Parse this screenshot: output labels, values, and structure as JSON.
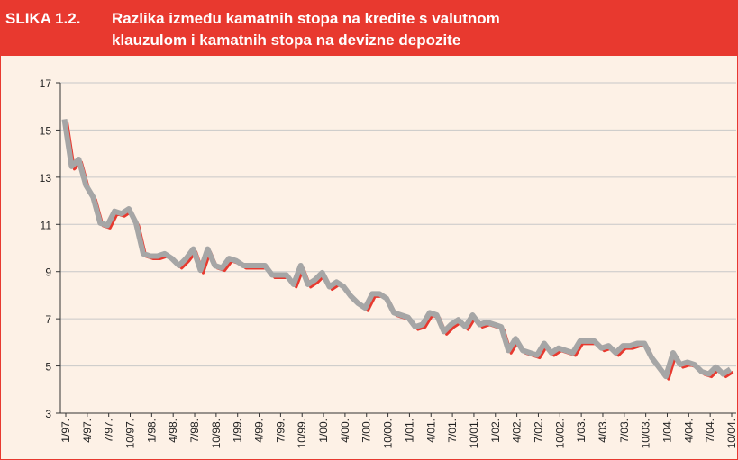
{
  "chart_data": {
    "type": "line",
    "figure_label": "SLIKA 1.2.",
    "title": [
      "Razlika između kamatnih stopa na kredite s valutnom",
      "klauzulom i kamatnih stopa na devizne depozite"
    ],
    "categories": [
      "1/97.",
      null,
      null,
      "4/97.",
      null,
      null,
      "7/97.",
      null,
      null,
      "10/97.",
      null,
      null,
      "1/98.",
      null,
      null,
      "4/98.",
      null,
      null,
      "7/98.",
      null,
      null,
      "10/98.",
      null,
      null,
      "1/99.",
      null,
      null,
      "4/99.",
      null,
      null,
      "7/99.",
      null,
      null,
      "10/99.",
      null,
      null,
      "1/00.",
      null,
      null,
      "4/00.",
      null,
      null,
      "7/00.",
      null,
      null,
      "10/00.",
      null,
      null,
      "1/01.",
      null,
      null,
      "4/01.",
      null,
      null,
      "7/01.",
      null,
      null,
      "10/01.",
      null,
      null,
      "1/02.",
      null,
      null,
      "4/02.",
      null,
      null,
      "7/02.",
      null,
      null,
      "10/02.",
      null,
      null,
      "1/03.",
      null,
      null,
      "4/03.",
      null,
      null,
      "7/03.",
      null,
      null,
      "10/03.",
      null,
      null,
      "1/04.",
      null,
      null,
      "4/04.",
      null,
      null,
      "7/04.",
      null,
      null,
      "10/04."
    ],
    "series": [
      {
        "color": "#e8392f",
        "shadow_color": "#a6a6a6",
        "values": [
          15.4,
          13.4,
          13.7,
          12.6,
          12.1,
          11.0,
          10.9,
          11.5,
          11.4,
          11.6,
          11.0,
          9.7,
          9.6,
          9.6,
          9.7,
          9.5,
          9.2,
          9.5,
          9.9,
          9.0,
          9.9,
          9.2,
          9.1,
          9.5,
          9.4,
          9.2,
          9.2,
          9.2,
          9.2,
          8.8,
          8.8,
          8.8,
          8.4,
          9.2,
          8.4,
          8.6,
          8.9,
          8.3,
          8.5,
          8.3,
          7.9,
          7.6,
          7.4,
          8.0,
          8.0,
          7.8,
          7.2,
          7.1,
          7.0,
          6.6,
          6.7,
          7.2,
          7.1,
          6.4,
          6.7,
          6.9,
          6.6,
          7.1,
          6.7,
          6.8,
          6.7,
          6.6,
          5.6,
          6.1,
          5.6,
          5.5,
          5.4,
          5.9,
          5.5,
          5.7,
          5.6,
          5.5,
          6.0,
          6.0,
          6.0,
          5.7,
          5.8,
          5.5,
          5.8,
          5.8,
          5.9,
          5.9,
          5.3,
          4.9,
          4.5,
          5.5,
          5.0,
          5.1,
          5.0,
          4.7,
          4.6,
          4.9,
          4.6,
          4.8
        ]
      }
    ],
    "ylim": [
      3,
      17
    ],
    "yticks": [
      3,
      5,
      7,
      9,
      11,
      13,
      15,
      17
    ],
    "grid": true
  }
}
